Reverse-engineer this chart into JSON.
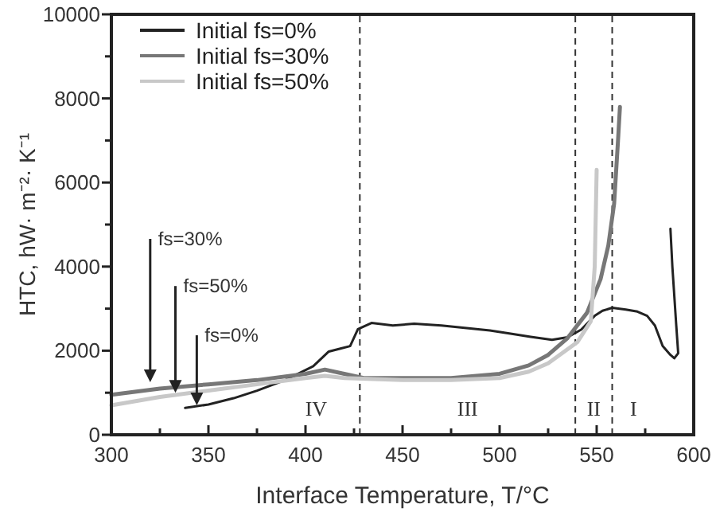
{
  "chart_data": {
    "type": "line",
    "xlabel": "Interface Temperature, T/°C",
    "ylabel": "HTC, hW· m⁻²· K⁻¹",
    "xlim": [
      300,
      600
    ],
    "ylim": [
      0,
      10000
    ],
    "xticks": [
      300,
      {
        "value": 325,
        "label": null
      },
      350,
      {
        "value": 375,
        "label": null
      },
      400,
      {
        "value": 425,
        "label": null
      },
      450,
      {
        "value": 475,
        "label": null
      },
      500,
      {
        "value": 525,
        "label": null
      },
      550,
      {
        "value": 575,
        "label": null
      },
      600
    ],
    "yticks": [
      0,
      {
        "value": 1000,
        "label": null
      },
      2000,
      {
        "value": 3000,
        "label": null
      },
      4000,
      {
        "value": 5000,
        "label": null
      },
      6000,
      {
        "value": 7000,
        "label": null
      },
      8000,
      {
        "value": 9000,
        "label": null
      },
      10000
    ],
    "grid": false,
    "legend": "top left",
    "marker": "none",
    "line_style": "solid",
    "series": [
      {
        "name": "Initial fs=0%",
        "color": "#222222",
        "x": [
          338,
          350,
          363,
          375,
          390,
          404,
          412,
          418,
          423,
          427,
          434,
          445,
          456,
          470,
          483,
          495,
          505,
          516,
          527,
          535,
          542,
          549,
          553,
          558,
          565,
          571,
          576,
          580,
          584,
          588,
          590,
          592,
          591,
          589,
          588
        ],
        "values": [
          640,
          720,
          870,
          1050,
          1310,
          1630,
          1980,
          2050,
          2110,
          2510,
          2660,
          2600,
          2640,
          2600,
          2540,
          2480,
          2410,
          2330,
          2260,
          2320,
          2500,
          2830,
          2950,
          3020,
          2980,
          2930,
          2830,
          2600,
          2110,
          1900,
          1820,
          1940,
          2600,
          4000,
          4900
        ]
      },
      {
        "name": "Initial fs=30%",
        "color": "#777777",
        "x": [
          300,
          325,
          350,
          375,
          400,
          410,
          420,
          430,
          450,
          475,
          500,
          515,
          525,
          535,
          545,
          552,
          556,
          559,
          561,
          562
        ],
        "values": [
          950,
          1100,
          1200,
          1300,
          1450,
          1550,
          1450,
          1350,
          1350,
          1350,
          1450,
          1650,
          1900,
          2300,
          2900,
          3700,
          4500,
          5500,
          7000,
          7800
        ]
      },
      {
        "name": "Initial fs=50%",
        "color": "#c8c8c8",
        "x": [
          300,
          325,
          350,
          375,
          400,
          410,
          420,
          450,
          475,
          500,
          515,
          525,
          540,
          547,
          549,
          550
        ],
        "values": [
          700,
          900,
          1050,
          1200,
          1350,
          1400,
          1350,
          1300,
          1300,
          1350,
          1500,
          1700,
          2200,
          2700,
          4000,
          6300
        ]
      }
    ],
    "ref_lines": [
      {
        "axis": "x",
        "value": 428,
        "color": "#333333",
        "line_style": "dashed"
      },
      {
        "axis": "x",
        "value": 539,
        "color": "#333333",
        "line_style": "dashed"
      },
      {
        "axis": "x",
        "value": 558,
        "color": "#333333",
        "line_style": "dashed"
      }
    ],
    "annotations": [
      "IV",
      "III",
      "II",
      "I",
      {
        "text": "fs=30%",
        "x": 320,
        "y": 1250
      },
      {
        "text": "fs=50%",
        "x": 333,
        "y": 1000
      },
      {
        "text": "fs=0%",
        "x": 344,
        "y": 700
      }
    ]
  }
}
